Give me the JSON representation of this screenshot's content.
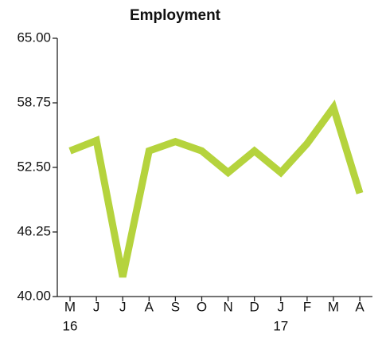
{
  "chart_data": {
    "type": "line",
    "title": "Employment",
    "categories": [
      "M",
      "J",
      "J",
      "A",
      "S",
      "O",
      "N",
      "D",
      "J",
      "F",
      "M",
      "A"
    ],
    "year_labels": [
      "16",
      null,
      null,
      null,
      null,
      null,
      null,
      null,
      "17",
      null,
      null,
      null
    ],
    "values": [
      54.1,
      55.1,
      41.9,
      54.1,
      55.0,
      54.1,
      52.0,
      54.1,
      52.0,
      54.8,
      58.3,
      50.0
    ],
    "color": "#b5d33d",
    "ylim": [
      40,
      65
    ],
    "yticks": [
      {
        "value": 40,
        "label": "40.00"
      },
      {
        "value": 46.25,
        "label": "46.25"
      },
      {
        "value": 52.5,
        "label": "52.50"
      },
      {
        "value": 58.75,
        "label": "58.75"
      },
      {
        "value": 65,
        "label": "65.00"
      }
    ],
    "grid": false
  }
}
